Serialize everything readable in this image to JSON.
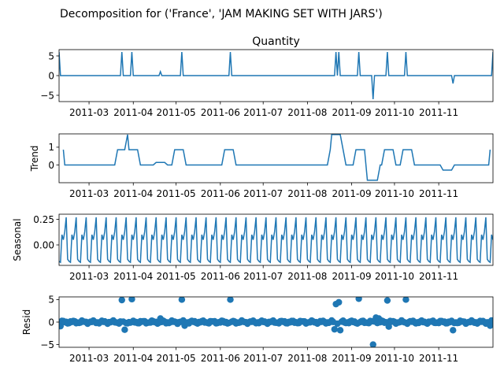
{
  "figure": {
    "suptitle": "Decomposition for ('France', 'JAM MAKING SET WITH JARS')",
    "line_color": "#1f77b4",
    "dot_color": "#1f77b4"
  },
  "chart_data": [
    {
      "type": "line",
      "title": "Quantity",
      "ylabel": "",
      "x_range": [
        "2011-02-08",
        "2011-12-09"
      ],
      "x_ticks": [
        "2011-03",
        "2011-04",
        "2011-05",
        "2011-06",
        "2011-07",
        "2011-08",
        "2011-09",
        "2011-10",
        "2011-11"
      ],
      "ylim": [
        -6.6,
        6.6
      ],
      "y_ticks": [
        -5,
        0,
        5
      ],
      "baseline": 0,
      "spikes": [
        {
          "date": "2011-02-08",
          "value": 6
        },
        {
          "date": "2011-03-24",
          "value": 6
        },
        {
          "date": "2011-03-31",
          "value": 6
        },
        {
          "date": "2011-04-20",
          "value": 1
        },
        {
          "date": "2011-05-05",
          "value": 6
        },
        {
          "date": "2011-06-08",
          "value": 6
        },
        {
          "date": "2011-08-21",
          "value": 6
        },
        {
          "date": "2011-08-23",
          "value": 6
        },
        {
          "date": "2011-09-06",
          "value": 6
        },
        {
          "date": "2011-09-16",
          "value": -6
        },
        {
          "date": "2011-09-26",
          "value": 6
        },
        {
          "date": "2011-10-09",
          "value": 6
        },
        {
          "date": "2011-11-11",
          "value": -2
        },
        {
          "date": "2011-12-09",
          "value": 6
        }
      ]
    },
    {
      "type": "line",
      "title": "",
      "ylabel": "Trend",
      "x_range": [
        "2011-02-08",
        "2011-12-09"
      ],
      "x_ticks": [
        "2011-03",
        "2011-04",
        "2011-05",
        "2011-06",
        "2011-07",
        "2011-08",
        "2011-09",
        "2011-10",
        "2011-11"
      ],
      "ylim": [
        -1.0,
        1.75
      ],
      "y_ticks": [
        0,
        1
      ],
      "points": [
        {
          "date": "2011-02-11",
          "value": 0.86
        },
        {
          "date": "2011-02-12",
          "value": 0
        },
        {
          "date": "2011-03-19",
          "value": 0
        },
        {
          "date": "2011-03-21",
          "value": 0.86
        },
        {
          "date": "2011-03-26",
          "value": 0.86
        },
        {
          "date": "2011-03-28",
          "value": 1.71
        },
        {
          "date": "2011-03-29",
          "value": 0.86
        },
        {
          "date": "2011-04-04",
          "value": 0.86
        },
        {
          "date": "2011-04-06",
          "value": 0
        },
        {
          "date": "2011-04-15",
          "value": 0
        },
        {
          "date": "2011-04-17",
          "value": 0.14
        },
        {
          "date": "2011-04-23",
          "value": 0.14
        },
        {
          "date": "2011-04-25",
          "value": 0
        },
        {
          "date": "2011-04-28",
          "value": 0
        },
        {
          "date": "2011-04-30",
          "value": 0.86
        },
        {
          "date": "2011-05-06",
          "value": 0.86
        },
        {
          "date": "2011-05-08",
          "value": 0
        },
        {
          "date": "2011-06-02",
          "value": 0
        },
        {
          "date": "2011-06-04",
          "value": 0.86
        },
        {
          "date": "2011-06-10",
          "value": 0.86
        },
        {
          "date": "2011-06-12",
          "value": 0
        },
        {
          "date": "2011-08-15",
          "value": 0
        },
        {
          "date": "2011-08-17",
          "value": 0.86
        },
        {
          "date": "2011-08-18",
          "value": 1.71
        },
        {
          "date": "2011-08-24",
          "value": 1.71
        },
        {
          "date": "2011-08-26",
          "value": 0.86
        },
        {
          "date": "2011-08-28",
          "value": 0
        },
        {
          "date": "2011-09-02",
          "value": 0
        },
        {
          "date": "2011-09-04",
          "value": 0.86
        },
        {
          "date": "2011-09-10",
          "value": 0.86
        },
        {
          "date": "2011-09-12",
          "value": -0.86
        },
        {
          "date": "2011-09-19",
          "value": -0.86
        },
        {
          "date": "2011-09-21",
          "value": 0
        },
        {
          "date": "2011-09-22",
          "value": 0
        },
        {
          "date": "2011-09-24",
          "value": 0.86
        },
        {
          "date": "2011-09-30",
          "value": 0.86
        },
        {
          "date": "2011-10-02",
          "value": 0
        },
        {
          "date": "2011-10-05",
          "value": 0
        },
        {
          "date": "2011-10-07",
          "value": 0.86
        },
        {
          "date": "2011-10-13",
          "value": 0.86
        },
        {
          "date": "2011-10-15",
          "value": 0
        },
        {
          "date": "2011-11-02",
          "value": 0
        },
        {
          "date": "2011-11-04",
          "value": -0.29
        },
        {
          "date": "2011-11-10",
          "value": -0.29
        },
        {
          "date": "2011-11-12",
          "value": 0
        },
        {
          "date": "2011-11-22",
          "value": 0
        },
        {
          "date": "2011-11-23",
          "value": 0
        },
        {
          "date": "2011-12-06",
          "value": 0
        },
        {
          "date": "2011-12-07",
          "value": 0.86
        }
      ]
    },
    {
      "type": "line",
      "title": "",
      "ylabel": "Seasonal",
      "x_range": [
        "2011-02-08",
        "2011-12-09"
      ],
      "x_ticks": [
        "2011-03",
        "2011-04",
        "2011-05",
        "2011-06",
        "2011-07",
        "2011-08",
        "2011-09",
        "2011-10",
        "2011-11"
      ],
      "ylim": [
        -0.2,
        0.3
      ],
      "y_ticks": [
        0.0,
        0.25
      ],
      "y_tick_labels": [
        "0.00",
        "0.25"
      ],
      "period_days": 7,
      "start_date": "2011-02-08",
      "weekly_pattern": [
        -0.16,
        -0.17,
        0.1,
        0.05,
        0.13,
        0.27,
        -0.14
      ]
    },
    {
      "type": "scatter",
      "title": "",
      "ylabel": "Resid",
      "x_range": [
        "2011-02-08",
        "2011-12-09"
      ],
      "x_ticks": [
        "2011-03",
        "2011-04",
        "2011-05",
        "2011-06",
        "2011-07",
        "2011-08",
        "2011-09",
        "2011-10",
        "2011-11"
      ],
      "ylim": [
        -5.6,
        5.6
      ],
      "y_ticks": [
        -5,
        0,
        5
      ],
      "baseline": 0,
      "outliers": [
        {
          "date": "2011-02-09",
          "value": -0.9
        },
        {
          "date": "2011-03-24",
          "value": 4.9
        },
        {
          "date": "2011-03-26",
          "value": -1.7
        },
        {
          "date": "2011-03-31",
          "value": 5.1
        },
        {
          "date": "2011-04-20",
          "value": 0.8
        },
        {
          "date": "2011-05-05",
          "value": 5.0
        },
        {
          "date": "2011-05-07",
          "value": -0.8
        },
        {
          "date": "2011-06-08",
          "value": 5.0
        },
        {
          "date": "2011-08-20",
          "value": -1.6
        },
        {
          "date": "2011-08-21",
          "value": 4.0
        },
        {
          "date": "2011-08-23",
          "value": 4.4
        },
        {
          "date": "2011-08-24",
          "value": -1.8
        },
        {
          "date": "2011-09-06",
          "value": 5.2
        },
        {
          "date": "2011-09-16",
          "value": -5.0
        },
        {
          "date": "2011-09-18",
          "value": 1.0
        },
        {
          "date": "2011-09-20",
          "value": 0.8
        },
        {
          "date": "2011-09-26",
          "value": 4.8
        },
        {
          "date": "2011-09-27",
          "value": -1.0
        },
        {
          "date": "2011-10-09",
          "value": 5.0
        },
        {
          "date": "2011-11-11",
          "value": -1.8
        },
        {
          "date": "2011-12-07",
          "value": -0.8
        }
      ]
    }
  ]
}
